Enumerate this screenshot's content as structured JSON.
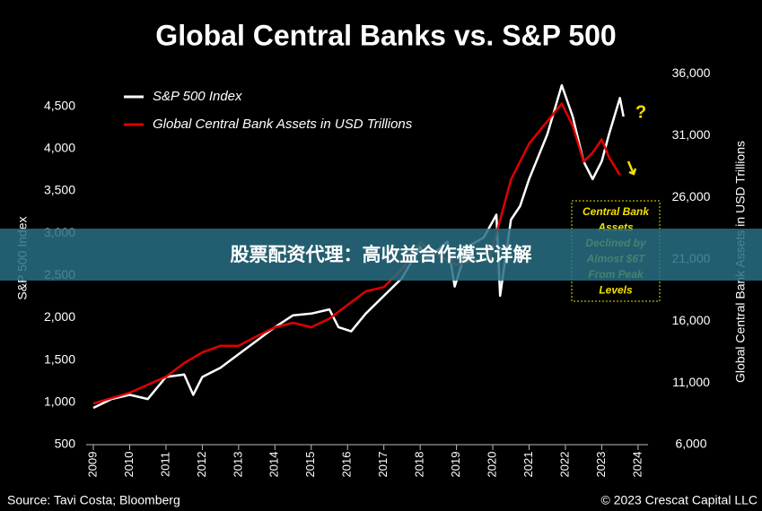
{
  "chart_data": {
    "type": "line",
    "title": "Global Central Banks vs. S&P 500",
    "y_label": "S&P 500 Index",
    "y2_label": "Global Central Bank Assets in USD Trillions",
    "xlim": [
      2009,
      2024.2
    ],
    "xticks": [
      2009,
      2010,
      2011,
      2012,
      2013,
      2014,
      2015,
      2016,
      2017,
      2018,
      2019,
      2020,
      2021,
      2022,
      2023,
      2024
    ],
    "ylim": [
      500,
      4900
    ],
    "yticks": [
      500,
      {
        "value": 1000,
        "label": "1,000"
      },
      {
        "value": 1500,
        "label": "1,500"
      },
      {
        "value": 2000,
        "label": "2,000"
      },
      {
        "value": 2500,
        "label": "2,500"
      },
      {
        "value": 3000,
        "label": "3,000"
      },
      {
        "value": 3500,
        "label": "3,500"
      },
      {
        "value": 4000,
        "label": "4,000"
      },
      {
        "value": 4500,
        "label": "4,500"
      }
    ],
    "y2lim": [
      6000,
      36100
    ],
    "y2ticks": [
      {
        "value": 6000,
        "label": "6,000"
      },
      {
        "value": 11000,
        "label": "11,000"
      },
      {
        "value": 16000,
        "label": "16,000"
      },
      {
        "value": 21000,
        "label": "21,000"
      },
      {
        "value": 26000,
        "label": "26,000"
      },
      {
        "value": 31000,
        "label": "31,000"
      },
      {
        "value": 36000,
        "label": "36,000"
      }
    ],
    "legend": "top-left",
    "series": [
      {
        "name": "S&P 500 Index",
        "color": "#ffffff",
        "axis": "y",
        "x": [
          2009,
          2009.5,
          2010,
          2010.5,
          2011,
          2011.5,
          2011.75,
          2012,
          2012.5,
          2013,
          2013.5,
          2014,
          2014.5,
          2015,
          2015.5,
          2015.75,
          2016.1,
          2016.5,
          2017,
          2017.5,
          2018,
          2018.2,
          2018.75,
          2018.95,
          2019.3,
          2019.75,
          2020.1,
          2020.2,
          2020.5,
          2020.75,
          2021,
          2021.5,
          2021.9,
          2022.2,
          2022.5,
          2022.75,
          2023,
          2023.2,
          2023.5,
          2023.6
        ],
        "values": [
          935,
          1040,
          1090,
          1040,
          1300,
          1330,
          1090,
          1300,
          1410,
          1570,
          1730,
          1890,
          2030,
          2050,
          2100,
          1890,
          1840,
          2050,
          2260,
          2470,
          2840,
          2690,
          2900,
          2370,
          2840,
          2950,
          3220,
          2260,
          3160,
          3320,
          3640,
          4170,
          4750,
          4380,
          3850,
          3640,
          3850,
          4170,
          4600,
          4380
        ]
      },
      {
        "name": "Global Central Bank Assets in USD Trillions",
        "color": "#e00000",
        "axis": "y2",
        "x": [
          2009,
          2010,
          2011,
          2011.5,
          2012,
          2012.5,
          2013,
          2013.5,
          2014,
          2014.5,
          2015,
          2015.5,
          2016,
          2016.5,
          2017,
          2017.5,
          2018,
          2018.5,
          2019,
          2019.5,
          2019.9,
          2020.2,
          2020.5,
          2021,
          2021.5,
          2021.9,
          2022.2,
          2022.5,
          2022.75,
          2023,
          2023.2,
          2023.5
        ],
        "values": [
          9330,
          10200,
          11500,
          12600,
          13460,
          14000,
          14000,
          14770,
          15500,
          15860,
          15500,
          16200,
          17300,
          18400,
          18750,
          20200,
          22380,
          21300,
          20560,
          20930,
          20930,
          24190,
          27450,
          30350,
          32160,
          33600,
          31800,
          28900,
          29620,
          30700,
          29260,
          27810
        ]
      }
    ],
    "annotation": {
      "lines": [
        "Central Bank",
        "Assets",
        "Declined by",
        "Almost $6T",
        "From Peak",
        "Levels"
      ],
      "question_mark": "?"
    },
    "source": "Source: Tavi Costa; Bloomberg",
    "copyright": "© 2023 Crescat Capital LLC"
  },
  "banner": "股票配资代理：高收益合作模式详解"
}
